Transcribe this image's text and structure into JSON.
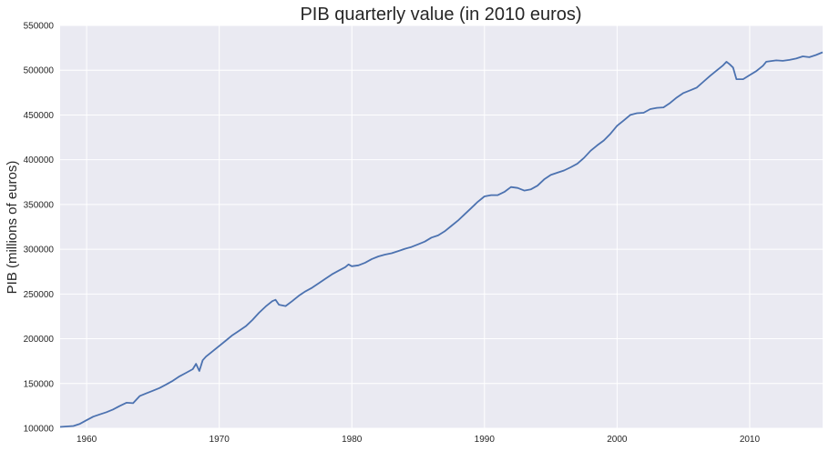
{
  "chart_data": {
    "type": "line",
    "title": "PIB quarterly value (in 2010 euros)",
    "xlabel": "",
    "ylabel": "PIB (millions of euros)",
    "xlim": [
      1958,
      2015.5
    ],
    "ylim": [
      100000,
      550000
    ],
    "x_ticks": [
      1960,
      1970,
      1980,
      1990,
      2000,
      2010
    ],
    "x_tick_labels": [
      "1960",
      "1970",
      "1980",
      "1990",
      "2000",
      "2010"
    ],
    "y_ticks": [
      100000,
      150000,
      200000,
      250000,
      300000,
      350000,
      400000,
      450000,
      500000,
      550000
    ],
    "y_tick_labels": [
      "100000",
      "150000",
      "200000",
      "250000",
      "300000",
      "350000",
      "400000",
      "450000",
      "500000",
      "550000"
    ],
    "grid": true,
    "colors": {
      "background": "#eaeaf2",
      "grid": "#ffffff",
      "line": "#4c72b0"
    },
    "series": [
      {
        "points": [
          [
            1958.0,
            101500
          ],
          [
            1959.0,
            102500
          ],
          [
            1959.5,
            105000
          ],
          [
            1960.0,
            109000
          ],
          [
            1960.5,
            113000
          ],
          [
            1961.0,
            115500
          ],
          [
            1961.5,
            118000
          ],
          [
            1962.0,
            121000
          ],
          [
            1962.5,
            125000
          ],
          [
            1963.0,
            128500
          ],
          [
            1963.5,
            128000
          ],
          [
            1964.0,
            136000
          ],
          [
            1964.5,
            139000
          ],
          [
            1965.0,
            142000
          ],
          [
            1965.5,
            145000
          ],
          [
            1966.0,
            149000
          ],
          [
            1966.5,
            153000
          ],
          [
            1967.0,
            158000
          ],
          [
            1967.5,
            162000
          ],
          [
            1968.0,
            166000
          ],
          [
            1968.25,
            172000
          ],
          [
            1968.5,
            164000
          ],
          [
            1968.75,
            176000
          ],
          [
            1969.0,
            180000
          ],
          [
            1969.5,
            186000
          ],
          [
            1970.0,
            192000
          ],
          [
            1970.5,
            198000
          ],
          [
            1971.0,
            204000
          ],
          [
            1971.5,
            209000
          ],
          [
            1972.0,
            214000
          ],
          [
            1972.5,
            221000
          ],
          [
            1973.0,
            229000
          ],
          [
            1973.5,
            236000
          ],
          [
            1974.0,
            242000
          ],
          [
            1974.25,
            243500
          ],
          [
            1974.5,
            238000
          ],
          [
            1975.0,
            236500
          ],
          [
            1975.5,
            242000
          ],
          [
            1976.0,
            248000
          ],
          [
            1976.5,
            253000
          ],
          [
            1977.0,
            257000
          ],
          [
            1977.5,
            262000
          ],
          [
            1978.0,
            267000
          ],
          [
            1978.5,
            272000
          ],
          [
            1979.0,
            276000
          ],
          [
            1979.5,
            280000
          ],
          [
            1979.75,
            283000
          ],
          [
            1980.0,
            281000
          ],
          [
            1980.5,
            282000
          ],
          [
            1981.0,
            285000
          ],
          [
            1981.5,
            289000
          ],
          [
            1982.0,
            292000
          ],
          [
            1982.5,
            294000
          ],
          [
            1983.0,
            295500
          ],
          [
            1983.5,
            298000
          ],
          [
            1984.0,
            300500
          ],
          [
            1984.5,
            302500
          ],
          [
            1985.0,
            305500
          ],
          [
            1985.5,
            308500
          ],
          [
            1986.0,
            313000
          ],
          [
            1986.5,
            315500
          ],
          [
            1987.0,
            320000
          ],
          [
            1987.5,
            326000
          ],
          [
            1988.0,
            332000
          ],
          [
            1988.5,
            339000
          ],
          [
            1989.0,
            346000
          ],
          [
            1989.5,
            353000
          ],
          [
            1990.0,
            359000
          ],
          [
            1990.5,
            360500
          ],
          [
            1991.0,
            360500
          ],
          [
            1991.5,
            364000
          ],
          [
            1992.0,
            369500
          ],
          [
            1992.5,
            368500
          ],
          [
            1993.0,
            365500
          ],
          [
            1993.5,
            367000
          ],
          [
            1994.0,
            371000
          ],
          [
            1994.5,
            378000
          ],
          [
            1995.0,
            383000
          ],
          [
            1995.5,
            385500
          ],
          [
            1996.0,
            388000
          ],
          [
            1996.5,
            391500
          ],
          [
            1997.0,
            395500
          ],
          [
            1997.5,
            402000
          ],
          [
            1998.0,
            410000
          ],
          [
            1998.5,
            416000
          ],
          [
            1999.0,
            421500
          ],
          [
            1999.5,
            429000
          ],
          [
            2000.0,
            438000
          ],
          [
            2000.5,
            444000
          ],
          [
            2001.0,
            450000
          ],
          [
            2001.5,
            452000
          ],
          [
            2002.0,
            452500
          ],
          [
            2002.5,
            456500
          ],
          [
            2003.0,
            458000
          ],
          [
            2003.5,
            458500
          ],
          [
            2004.0,
            463500
          ],
          [
            2004.5,
            469500
          ],
          [
            2005.0,
            474500
          ],
          [
            2005.5,
            477500
          ],
          [
            2006.0,
            480500
          ],
          [
            2006.5,
            487000
          ],
          [
            2007.0,
            493500
          ],
          [
            2007.5,
            499500
          ],
          [
            2008.0,
            505500
          ],
          [
            2008.25,
            509500
          ],
          [
            2008.5,
            506500
          ],
          [
            2008.75,
            503000
          ],
          [
            2009.0,
            490000
          ],
          [
            2009.5,
            490000
          ],
          [
            2010.0,
            494500
          ],
          [
            2010.5,
            499000
          ],
          [
            2011.0,
            505000
          ],
          [
            2011.25,
            509500
          ],
          [
            2011.5,
            510000
          ],
          [
            2012.0,
            511000
          ],
          [
            2012.5,
            510500
          ],
          [
            2013.0,
            511500
          ],
          [
            2013.5,
            513000
          ],
          [
            2014.0,
            515500
          ],
          [
            2014.5,
            514500
          ],
          [
            2015.0,
            517000
          ],
          [
            2015.5,
            520000
          ]
        ]
      }
    ]
  }
}
